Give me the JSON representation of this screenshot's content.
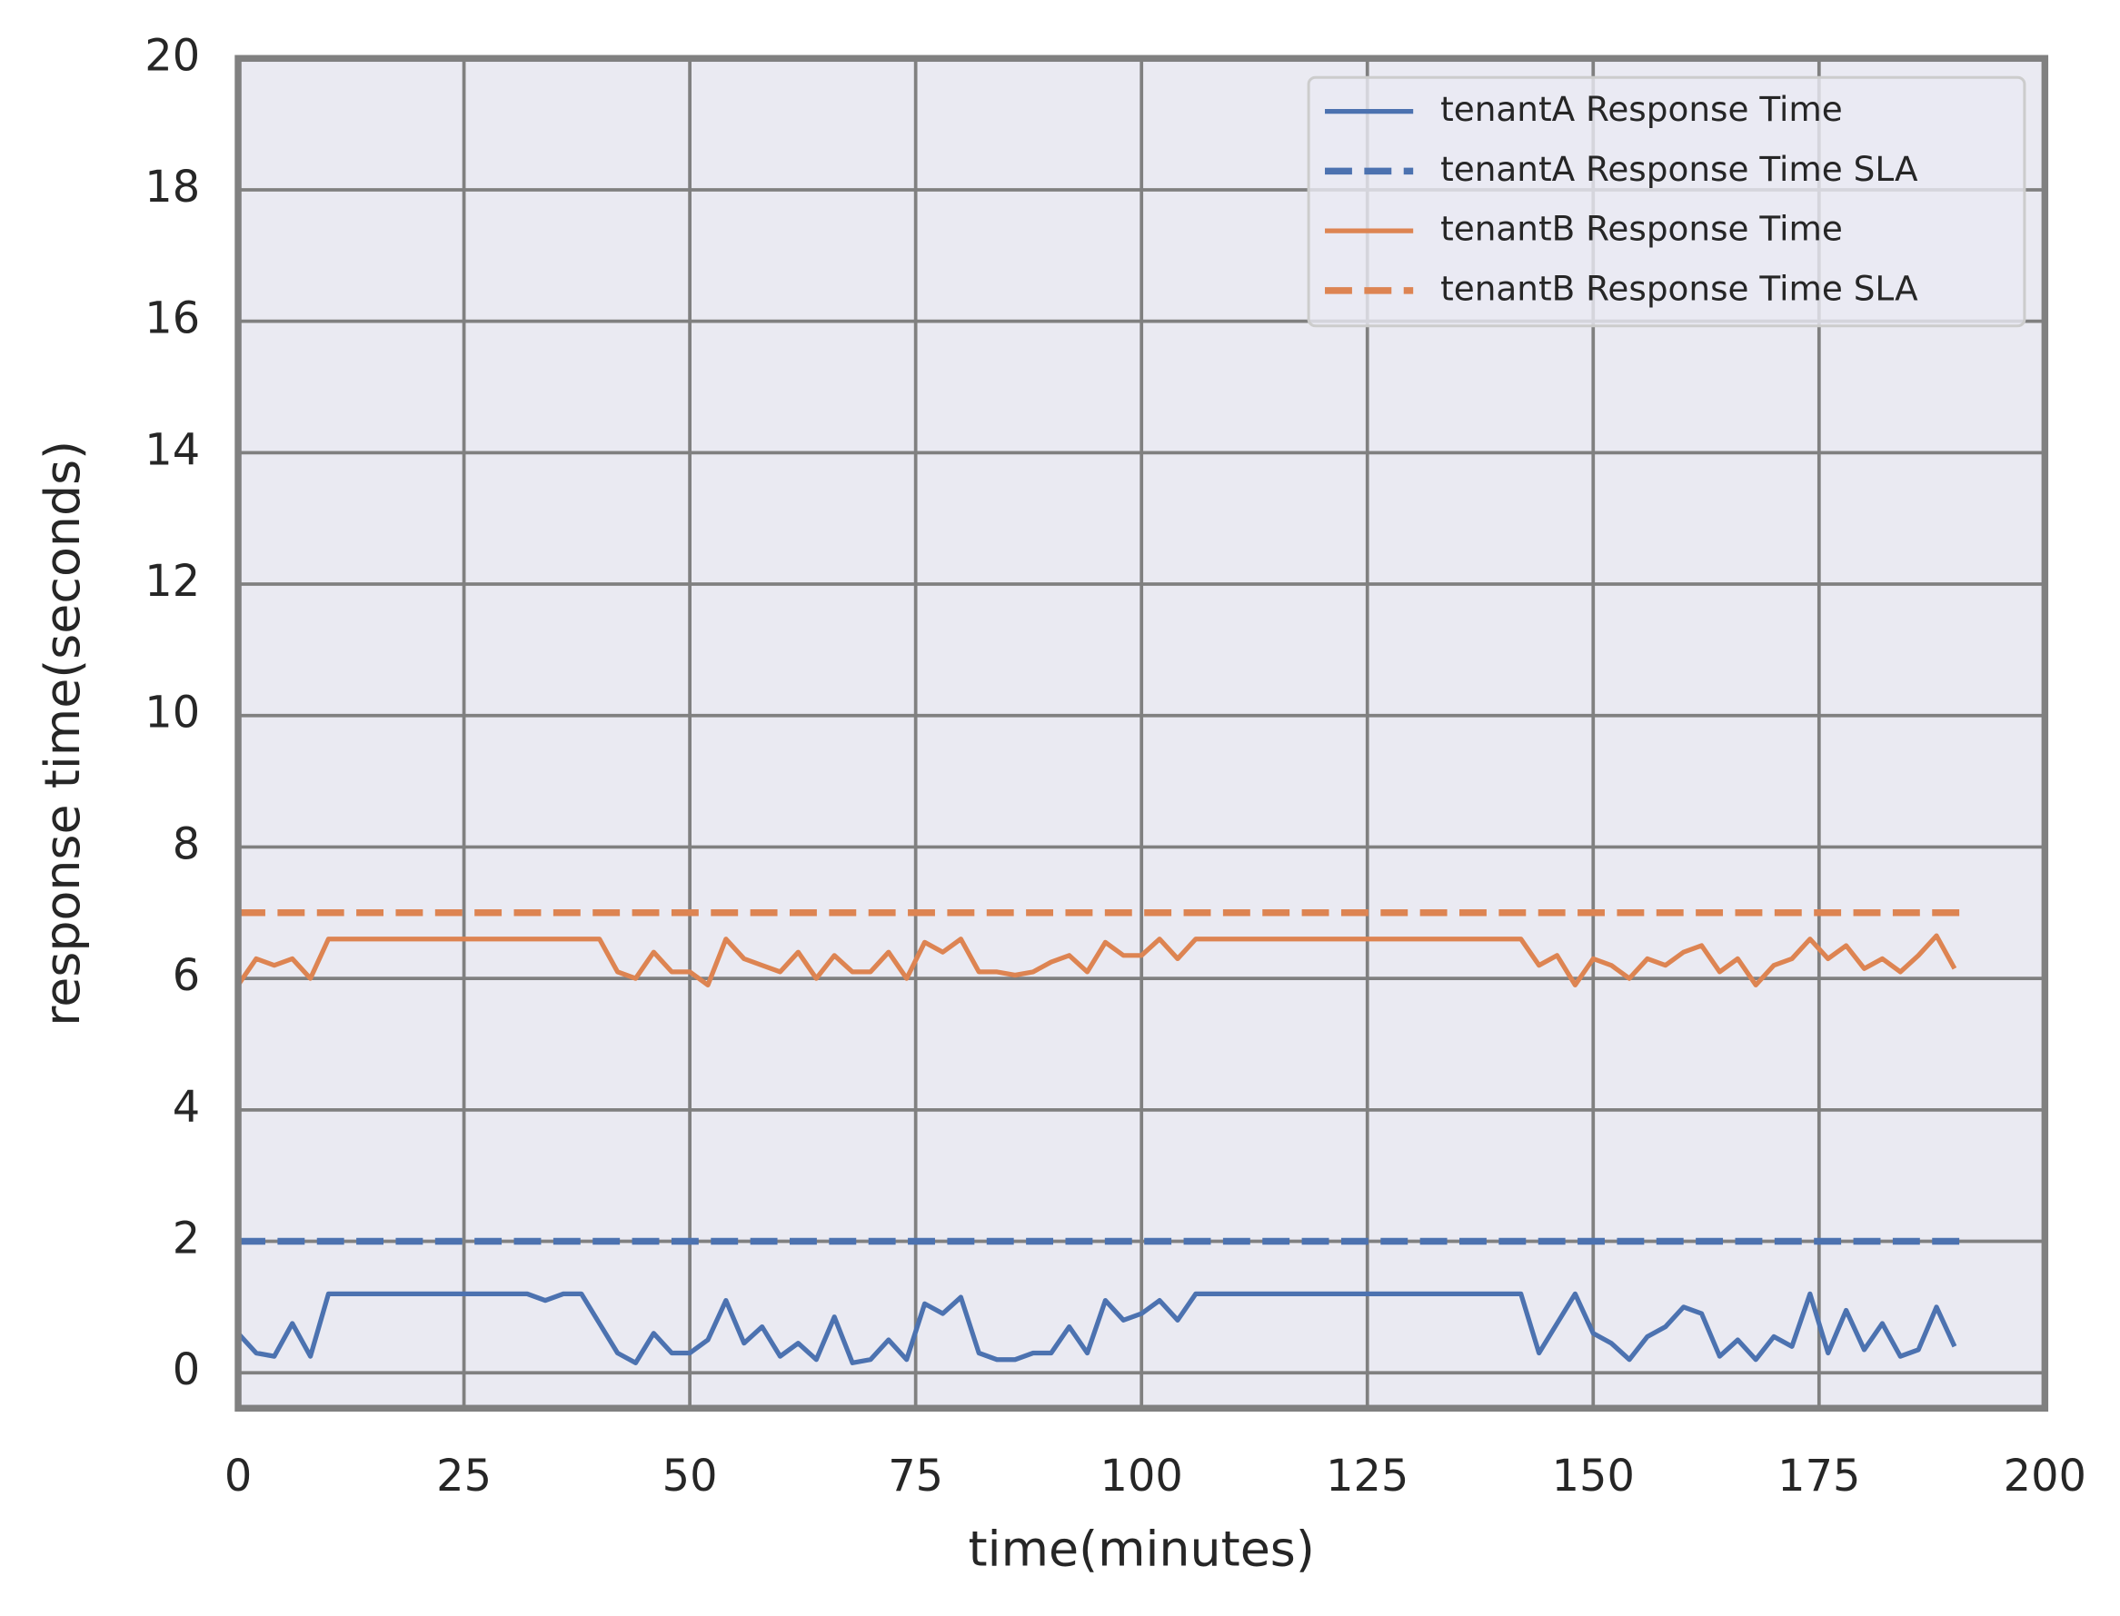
{
  "chart_data": {
    "type": "line",
    "xlabel": "time(minutes)",
    "ylabel": "response time(seconds)",
    "x": [
      0,
      2,
      4,
      6,
      8,
      10,
      12,
      14,
      16,
      18,
      20,
      22,
      24,
      26,
      28,
      30,
      32,
      34,
      36,
      38,
      40,
      42,
      44,
      46,
      48,
      50,
      52,
      54,
      56,
      58,
      60,
      62,
      64,
      66,
      68,
      70,
      72,
      74,
      76,
      78,
      80,
      82,
      84,
      86,
      88,
      90,
      92,
      94,
      96,
      98,
      100,
      102,
      104,
      106,
      108,
      110,
      112,
      114,
      116,
      118,
      120,
      122,
      124,
      126,
      128,
      130,
      132,
      134,
      136,
      138,
      140,
      142,
      144,
      146,
      148,
      150,
      152,
      154,
      156,
      158,
      160,
      162,
      164,
      166,
      168,
      170,
      172,
      174,
      176,
      178,
      180,
      182,
      184,
      186,
      188,
      190
    ],
    "series": [
      {
        "name": "tenantA Response Time",
        "color": "#4c72b0",
        "dash": false,
        "values": [
          0.6,
          0.3,
          0.25,
          0.75,
          0.25,
          1.2,
          1.2,
          1.2,
          1.2,
          1.2,
          1.2,
          1.2,
          1.2,
          1.2,
          1.2,
          1.2,
          1.2,
          1.1,
          1.2,
          1.2,
          0.75,
          0.3,
          0.15,
          0.6,
          0.3,
          0.3,
          0.5,
          1.1,
          0.45,
          0.7,
          0.25,
          0.45,
          0.2,
          0.85,
          0.15,
          0.2,
          0.5,
          0.2,
          1.05,
          0.9,
          1.15,
          0.3,
          0.2,
          0.2,
          0.3,
          0.3,
          0.7,
          0.3,
          1.1,
          0.8,
          0.9,
          1.1,
          0.8,
          1.2,
          1.2,
          1.2,
          1.2,
          1.2,
          1.2,
          1.2,
          1.2,
          1.2,
          1.2,
          1.2,
          1.2,
          1.2,
          1.2,
          1.2,
          1.2,
          1.2,
          1.2,
          1.2,
          0.3,
          0.75,
          1.2,
          0.6,
          0.45,
          0.2,
          0.55,
          0.7,
          1.0,
          0.9,
          0.25,
          0.5,
          0.2,
          0.55,
          0.4,
          1.2,
          0.3,
          0.95,
          0.35,
          0.75,
          0.25,
          0.35,
          1.0,
          0.4
        ]
      },
      {
        "name": "tenantA Response Time SLA",
        "color": "#4c72b0",
        "dash": true,
        "x": [
          0,
          191
        ],
        "values": [
          2,
          2
        ]
      },
      {
        "name": "tenantB Response Time",
        "color": "#dd8452",
        "dash": false,
        "values": [
          5.9,
          6.3,
          6.2,
          6.3,
          6.0,
          6.6,
          6.6,
          6.6,
          6.6,
          6.6,
          6.6,
          6.6,
          6.6,
          6.6,
          6.6,
          6.6,
          6.6,
          6.6,
          6.6,
          6.6,
          6.6,
          6.1,
          6.0,
          6.4,
          6.1,
          6.1,
          5.9,
          6.6,
          6.3,
          6.2,
          6.1,
          6.4,
          6.0,
          6.35,
          6.1,
          6.1,
          6.4,
          6.0,
          6.55,
          6.4,
          6.6,
          6.1,
          6.1,
          6.05,
          6.1,
          6.25,
          6.35,
          6.1,
          6.55,
          6.35,
          6.35,
          6.6,
          6.3,
          6.6,
          6.6,
          6.6,
          6.6,
          6.6,
          6.6,
          6.6,
          6.6,
          6.6,
          6.6,
          6.6,
          6.6,
          6.6,
          6.6,
          6.6,
          6.6,
          6.6,
          6.6,
          6.6,
          6.2,
          6.35,
          5.9,
          6.3,
          6.2,
          6.0,
          6.3,
          6.2,
          6.4,
          6.5,
          6.1,
          6.3,
          5.9,
          6.2,
          6.3,
          6.6,
          6.3,
          6.5,
          6.15,
          6.3,
          6.1,
          6.35,
          6.65,
          6.15
        ]
      },
      {
        "name": "tenantB Response Time SLA",
        "color": "#dd8452",
        "dash": true,
        "x": [
          0,
          191
        ],
        "values": [
          7,
          7
        ]
      }
    ],
    "xlim": [
      0,
      200
    ],
    "xticks": [
      0,
      25,
      50,
      75,
      100,
      125,
      150,
      175,
      200
    ],
    "ylim": [
      -0.54,
      20
    ],
    "yticks": [
      0,
      2,
      4,
      6,
      8,
      10,
      12,
      14,
      16,
      18,
      20
    ],
    "grid": true,
    "legend": "upper right"
  }
}
